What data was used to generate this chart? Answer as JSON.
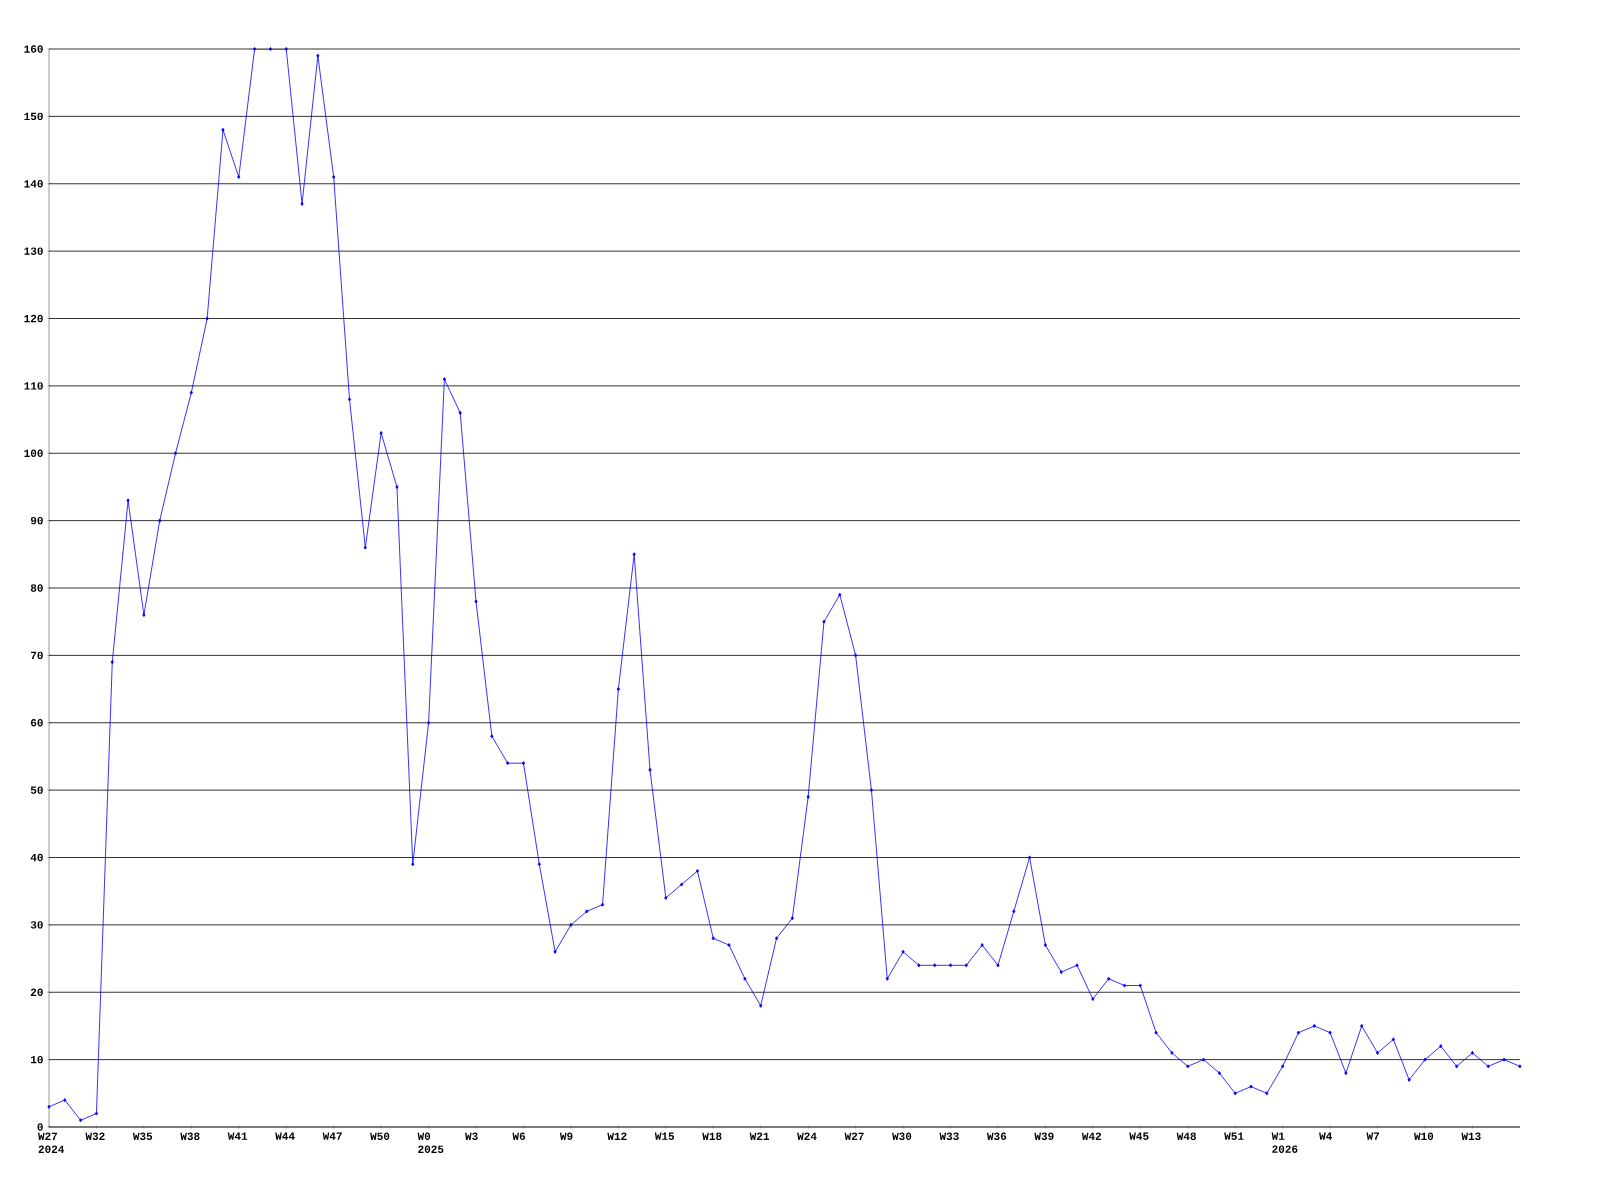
{
  "chart_data": {
    "type": "line",
    "categories": [
      "W27 2024",
      null,
      null,
      "W32",
      null,
      null,
      "W35",
      null,
      null,
      "W38",
      null,
      null,
      "W41",
      null,
      null,
      "W44",
      null,
      null,
      "W47",
      null,
      null,
      "W50",
      null,
      null,
      "W0 2025",
      null,
      null,
      "W3",
      null,
      null,
      "W6",
      null,
      null,
      "W9",
      null,
      null,
      "W12",
      null,
      null,
      "W15",
      null,
      null,
      "W18",
      null,
      null,
      "W21",
      null,
      null,
      "W24",
      null,
      null,
      "W27",
      null,
      null,
      "W30",
      null,
      null,
      "W33",
      null,
      null,
      "W36",
      null,
      null,
      "W39",
      null,
      null,
      "W42",
      null,
      null,
      "W45",
      null,
      null,
      "W48",
      null,
      null,
      "W51",
      null,
      null,
      "W1 2026",
      null,
      null,
      "W4",
      null,
      null,
      "W7",
      null,
      null,
      "W10",
      null,
      null,
      "W13",
      null,
      null,
      null
    ],
    "values": [
      3,
      4,
      1,
      2,
      69,
      93,
      76,
      90,
      100,
      109,
      120,
      148,
      141,
      160,
      160,
      160,
      137,
      159,
      141,
      108,
      86,
      103,
      95,
      39,
      60,
      111,
      106,
      78,
      58,
      54,
      54,
      39,
      26,
      30,
      32,
      33,
      65,
      85,
      53,
      34,
      36,
      38,
      28,
      27,
      22,
      18,
      28,
      31,
      49,
      75,
      79,
      70,
      50,
      22,
      26,
      24,
      24,
      24,
      24,
      27,
      24,
      32,
      40,
      27,
      23,
      24,
      19,
      22,
      21,
      21,
      14,
      11,
      9,
      10,
      8,
      5,
      6,
      5,
      9,
      14,
      15,
      14,
      8,
      15,
      11,
      13,
      7,
      10,
      12,
      9,
      11,
      9,
      10,
      9
    ],
    "color": "#0000ff",
    "ylim": [
      0,
      160
    ],
    "yticks": [
      0,
      10,
      20,
      30,
      40,
      50,
      60,
      70,
      80,
      90,
      100,
      110,
      120,
      130,
      140,
      150,
      160
    ],
    "grid": "y",
    "marker": "diamond",
    "line_style": "solid"
  }
}
